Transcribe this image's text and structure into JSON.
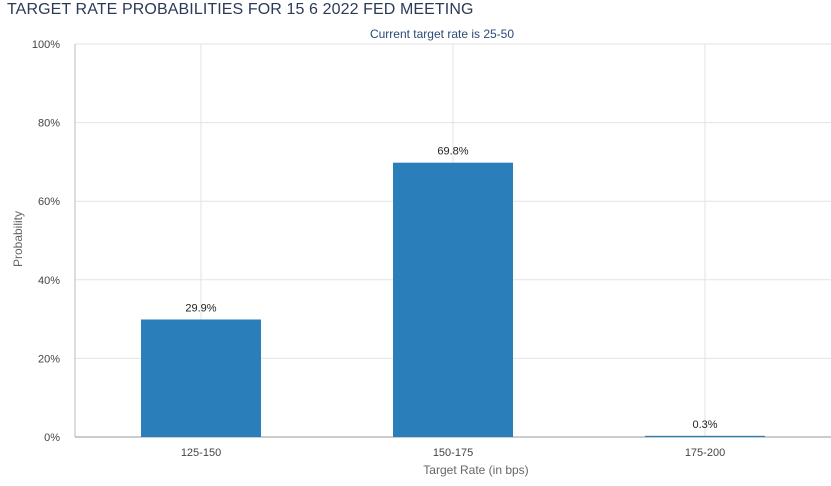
{
  "chart_data": {
    "type": "bar",
    "title": "TARGET RATE PROBABILITIES FOR 15 6 2022 FED MEETING",
    "subtitle": "Current target rate is 25-50",
    "xlabel": "Target Rate (in bps)",
    "ylabel": "Probability",
    "categories": [
      "125-150",
      "150-175",
      "175-200"
    ],
    "values": [
      29.9,
      69.8,
      0.3
    ],
    "value_labels": [
      "29.9%",
      "69.8%",
      "0.3%"
    ],
    "ylim": [
      0,
      100
    ],
    "y_ticks": [
      0,
      20,
      40,
      60,
      80,
      100
    ],
    "y_tick_labels": [
      "0%",
      "20%",
      "40%",
      "60%",
      "80%",
      "100%"
    ],
    "grid": true,
    "legend": "none",
    "bar_color": "#2a7fba"
  }
}
